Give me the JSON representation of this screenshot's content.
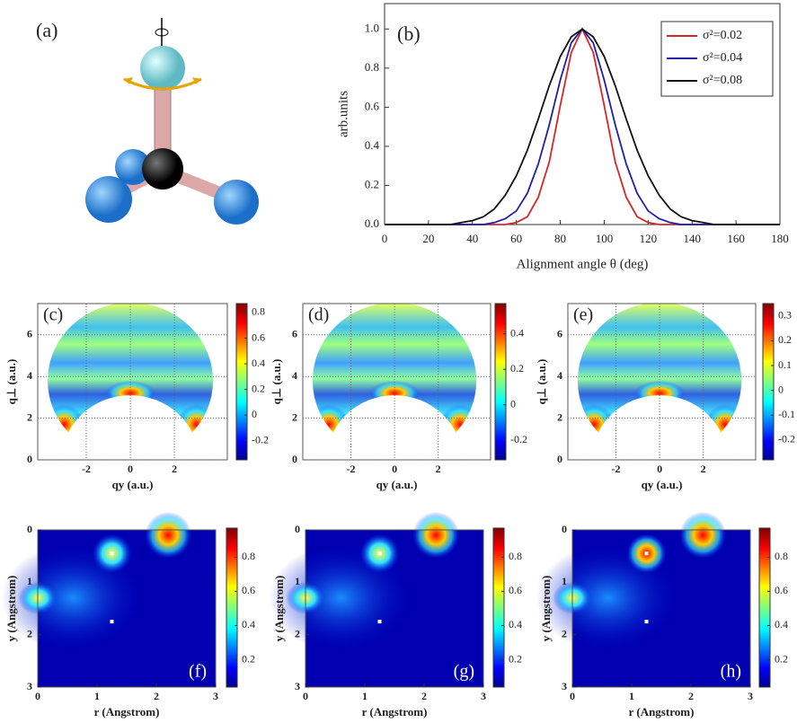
{
  "diagram": {
    "label": "(a)"
  },
  "chart_data": [
    {
      "type": "line",
      "label": "(b)",
      "x_label": "Alignment angle θ (deg)",
      "y_label": "arb.units",
      "x": [
        0,
        5,
        10,
        15,
        20,
        25,
        30,
        35,
        40,
        45,
        50,
        55,
        60,
        65,
        70,
        75,
        80,
        85,
        90,
        95,
        100,
        105,
        110,
        115,
        120,
        125,
        130,
        135,
        140,
        145,
        150,
        155,
        160,
        165,
        170,
        175,
        180
      ],
      "series": [
        {
          "name": "σ²=0.02",
          "color": "#d62728",
          "values": [
            0,
            0,
            0,
            0,
            0,
            0,
            0,
            0,
            0,
            0,
            0,
            0,
            0.01,
            0.04,
            0.14,
            0.32,
            0.61,
            0.88,
            1,
            0.88,
            0.61,
            0.32,
            0.14,
            0.04,
            0.01,
            0,
            0,
            0,
            0,
            0,
            0,
            0,
            0,
            0,
            0,
            0,
            0
          ]
        },
        {
          "name": "σ²=0.04",
          "color": "#1f1fa8",
          "values": [
            0,
            0,
            0,
            0,
            0,
            0,
            0,
            0,
            0,
            0,
            0.01,
            0.03,
            0.07,
            0.16,
            0.31,
            0.51,
            0.74,
            0.93,
            1,
            0.93,
            0.74,
            0.51,
            0.31,
            0.16,
            0.07,
            0.03,
            0.01,
            0,
            0,
            0,
            0,
            0,
            0,
            0,
            0,
            0,
            0
          ]
        },
        {
          "name": "σ²=0.08",
          "color": "#111111",
          "values": [
            0,
            0,
            0,
            0,
            0,
            0,
            0,
            0.01,
            0.02,
            0.04,
            0.08,
            0.15,
            0.25,
            0.38,
            0.54,
            0.71,
            0.86,
            0.96,
            1,
            0.96,
            0.86,
            0.71,
            0.54,
            0.38,
            0.25,
            0.15,
            0.08,
            0.04,
            0.02,
            0.01,
            0,
            0,
            0,
            0,
            0,
            0,
            0
          ]
        }
      ],
      "xlim": [
        0,
        180
      ],
      "xticks": [
        0,
        20,
        40,
        60,
        80,
        100,
        120,
        140,
        160,
        180
      ],
      "ylim": [
        0,
        1.13
      ],
      "yticks": [
        {
          "value": 0,
          "label": "0.0"
        },
        {
          "value": 0.2,
          "label": "0.2"
        },
        {
          "value": 0.4,
          "label": "0.4"
        },
        {
          "value": 0.6,
          "label": "0.6"
        },
        {
          "value": 0.8,
          "label": "0.8"
        },
        {
          "value": 1,
          "label": "1.0"
        }
      ],
      "legend": "upper right"
    },
    {
      "type": "heatmap",
      "label": "(c)",
      "x_label": "qy (a.u.)",
      "y_label": "q⊥ (a.u.)",
      "xlim": [
        -4.2,
        4.4
      ],
      "xticks": [
        -2,
        0,
        2
      ],
      "ylim": [
        0,
        7.5
      ],
      "yticks": [
        0,
        2,
        4,
        6
      ],
      "grid": true,
      "colorbar": {
        "lim": [
          -0.35,
          0.87
        ],
        "ticks": [
          -0.2,
          0,
          0.2,
          0.4,
          0.6,
          0.8
        ]
      }
    },
    {
      "type": "heatmap",
      "label": "(d)",
      "x_label": "qy (a.u.)",
      "y_label": "q⊥ (a.u.)",
      "xlim": [
        -4.2,
        4.4
      ],
      "xticks": [
        -2,
        0,
        2
      ],
      "ylim": [
        0,
        7.5
      ],
      "yticks": [
        0,
        2,
        4,
        6
      ],
      "grid": true,
      "colorbar": {
        "lim": [
          -0.31,
          0.57
        ],
        "ticks": [
          -0.2,
          0,
          0.2,
          0.4
        ]
      }
    },
    {
      "type": "heatmap",
      "label": "(e)",
      "x_label": "qy (a.u.)",
      "y_label": "q⊥ (a.u.)",
      "xlim": [
        -4.2,
        4.4
      ],
      "xticks": [
        -2,
        0,
        2
      ],
      "ylim": [
        0,
        7.5
      ],
      "yticks": [
        0,
        2,
        4,
        6
      ],
      "grid": true,
      "colorbar": {
        "lim": [
          -0.28,
          0.35
        ],
        "ticks": [
          -0.2,
          -0.1,
          0,
          0.1,
          0.2,
          0.3
        ]
      }
    },
    {
      "type": "heatmap",
      "label": "(f)",
      "x_label": "r (Angstrom)",
      "y_label": "y (Angstrom)",
      "xlim": [
        0,
        3
      ],
      "xticks": [
        0,
        1,
        2,
        3
      ],
      "ylim": [
        3,
        0
      ],
      "yticks": [
        0,
        1,
        2,
        3
      ],
      "grid": false,
      "colorbar": {
        "lim": [
          0.04,
          0.97
        ],
        "ticks": [
          0.2,
          0.4,
          0.6,
          0.8
        ]
      }
    },
    {
      "type": "heatmap",
      "label": "(g)",
      "x_label": "r (Angstrom)",
      "y_label": "y (Angstrom)",
      "xlim": [
        0,
        3
      ],
      "xticks": [
        0,
        1,
        2,
        3
      ],
      "ylim": [
        3,
        0
      ],
      "yticks": [
        0,
        1,
        2,
        3
      ],
      "grid": false,
      "colorbar": {
        "lim": [
          0.04,
          0.97
        ],
        "ticks": [
          0.2,
          0.4,
          0.6,
          0.8
        ]
      }
    },
    {
      "type": "heatmap",
      "label": "(h)",
      "x_label": "r (Angstrom)",
      "y_label": "y (Angstrom)",
      "xlim": [
        0,
        3
      ],
      "xticks": [
        0,
        1,
        2,
        3
      ],
      "ylim": [
        3,
        0
      ],
      "yticks": [
        0,
        1,
        2,
        3
      ],
      "grid": false,
      "colorbar": {
        "lim": [
          0.04,
          0.97
        ],
        "ticks": [
          0.2,
          0.4,
          0.6,
          0.8
        ]
      }
    }
  ]
}
